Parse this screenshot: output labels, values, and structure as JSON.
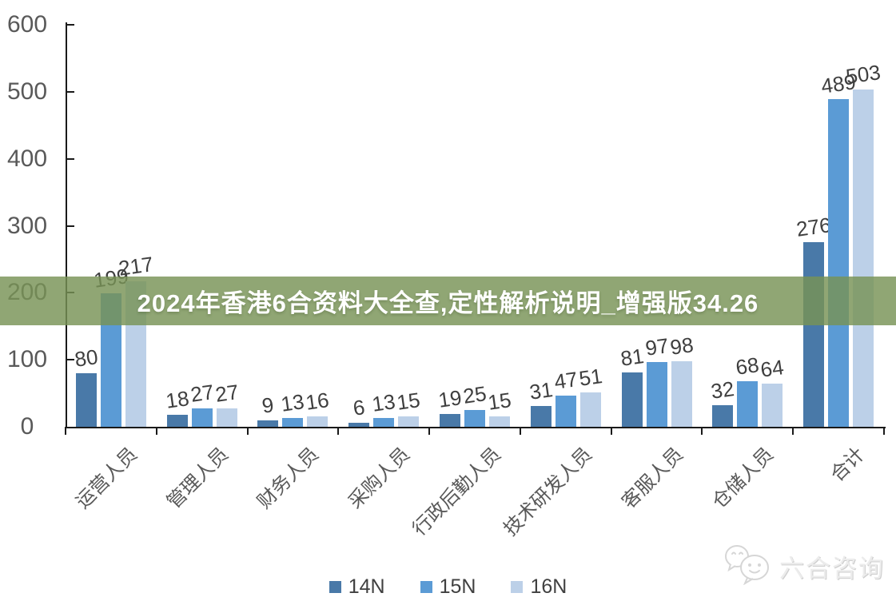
{
  "banner": {
    "text": "2024年香港6合资料大全查,定性解析说明_增强版34.26",
    "bg_color": "#78925A",
    "text_color": "#FFFFFF"
  },
  "watermark": {
    "text": "六合咨询",
    "icon": "wechat-chat-bubbles-icon",
    "color": "#D9D9D9"
  },
  "legend": {
    "position": "bottom",
    "items": [
      "14N",
      "15N",
      "16N"
    ]
  },
  "chart_data": {
    "type": "bar",
    "title": "",
    "xlabel": "",
    "ylabel": "",
    "categories": [
      "运营人员",
      "管理人员",
      "财务人员",
      "采购人员",
      "行政后勤人员",
      "技术研发人员",
      "客服人员",
      "仓储人员",
      "合计"
    ],
    "series": [
      {
        "name": "14N",
        "color": "#4979A8",
        "values": [
          80,
          18,
          9,
          6,
          19,
          31,
          81,
          32,
          276
        ]
      },
      {
        "name": "15N",
        "color": "#5B9BD5",
        "values": [
          199,
          27,
          13,
          13,
          25,
          47,
          97,
          68,
          489
        ]
      },
      {
        "name": "16N",
        "color": "#BCD0E8",
        "values": [
          217,
          27,
          16,
          15,
          15,
          51,
          98,
          64,
          503
        ]
      }
    ],
    "ylim": [
      0,
      600
    ],
    "yticks": [
      0,
      100,
      200,
      300,
      400,
      500,
      600
    ],
    "grid": false,
    "data_labels": true,
    "legend_position": "bottom",
    "axis_color": "#1A1A1A",
    "tick_label_color": "#595959",
    "data_label_color": "#3F3F3F"
  }
}
